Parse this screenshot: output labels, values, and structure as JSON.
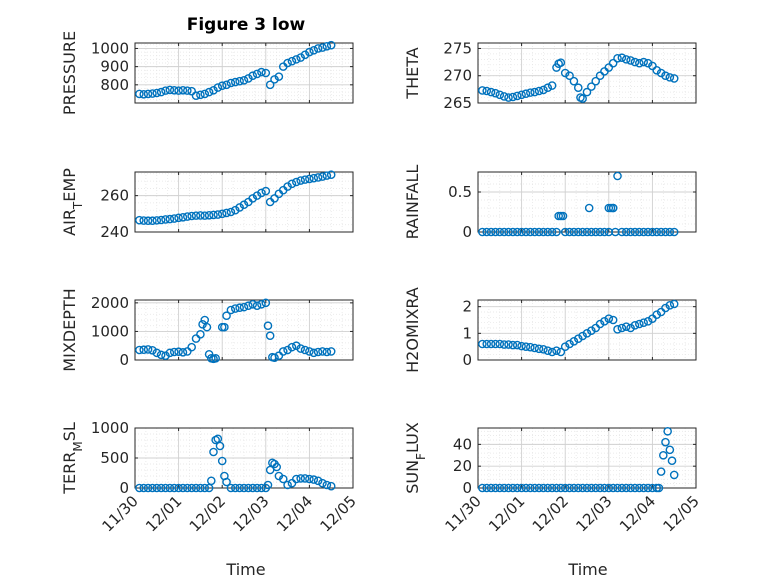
{
  "figure": {
    "title": "Figure 3 low",
    "marker_color": "#0072bd",
    "grid_color": "#d0d0d0",
    "axes_color": "#262626",
    "shared_x_tick_labels": [
      "11/30",
      "12/01",
      "12/02",
      "12/03",
      "12/04",
      "12/05"
    ],
    "shared_xlabel": "Time"
  },
  "chart_data": [
    {
      "type": "scatter",
      "ylabel": "PRESSURE",
      "ylim": [
        700,
        1030
      ],
      "yticks": [
        800,
        900,
        1000
      ],
      "xlim": [
        0,
        5
      ],
      "grid": true,
      "x": [
        0.1,
        0.2,
        0.3,
        0.4,
        0.5,
        0.6,
        0.7,
        0.8,
        0.9,
        1.0,
        1.1,
        1.2,
        1.3,
        1.4,
        1.5,
        1.6,
        1.7,
        1.8,
        1.9,
        2.0,
        2.1,
        2.2,
        2.3,
        2.4,
        2.5,
        2.6,
        2.7,
        2.8,
        2.9,
        3.0,
        3.1,
        3.2,
        3.3,
        3.4,
        3.5,
        3.6,
        3.7,
        3.8,
        3.9,
        4.0,
        4.1,
        4.2,
        4.3,
        4.4,
        4.5
      ],
      "y": [
        750,
        748,
        750,
        752,
        755,
        760,
        768,
        772,
        770,
        768,
        770,
        768,
        765,
        740,
        745,
        750,
        760,
        770,
        785,
        795,
        800,
        810,
        815,
        820,
        825,
        835,
        850,
        860,
        870,
        865,
        800,
        830,
        845,
        900,
        920,
        930,
        940,
        950,
        965,
        980,
        990,
        1000,
        1005,
        1012,
        1018
      ]
    },
    {
      "type": "scatter",
      "ylabel": "THETA",
      "ylim": [
        265,
        276
      ],
      "yticks": [
        265,
        270,
        275
      ],
      "xlim": [
        0,
        5
      ],
      "grid": true,
      "x": [
        0.1,
        0.2,
        0.3,
        0.4,
        0.5,
        0.6,
        0.7,
        0.8,
        0.9,
        1.0,
        1.1,
        1.2,
        1.3,
        1.4,
        1.5,
        1.6,
        1.7,
        1.8,
        1.85,
        1.9,
        2.0,
        2.1,
        2.2,
        2.3,
        2.35,
        2.4,
        2.5,
        2.6,
        2.7,
        2.8,
        2.9,
        3.0,
        3.1,
        3.2,
        3.3,
        3.4,
        3.5,
        3.6,
        3.7,
        3.8,
        3.9,
        4.0,
        4.1,
        4.2,
        4.3,
        4.4,
        4.5
      ],
      "y": [
        267.3,
        267.2,
        267,
        266.8,
        266.5,
        266.2,
        266,
        266.1,
        266.3,
        266.5,
        266.7,
        266.9,
        267,
        267.2,
        267.4,
        267.8,
        268.2,
        271.5,
        272.2,
        272.4,
        270.5,
        270,
        269,
        267.8,
        266,
        265.8,
        267,
        268,
        269,
        270,
        270.8,
        271.5,
        272.3,
        273.2,
        273.3,
        273,
        272.8,
        272.5,
        272.3,
        272.5,
        272.3,
        271.8,
        271,
        270.5,
        270,
        269.7,
        269.5
      ]
    },
    {
      "type": "scatter",
      "ylabel_main": "AIR",
      "ylabel_sub": "T",
      "ylabel_rest": "EMP",
      "ylim": [
        240,
        273
      ],
      "yticks": [
        240,
        260
      ],
      "xlim": [
        0,
        5
      ],
      "grid": true,
      "x": [
        0.1,
        0.2,
        0.3,
        0.4,
        0.5,
        0.6,
        0.7,
        0.8,
        0.9,
        1.0,
        1.1,
        1.2,
        1.3,
        1.4,
        1.5,
        1.6,
        1.7,
        1.8,
        1.9,
        2.0,
        2.1,
        2.2,
        2.3,
        2.4,
        2.5,
        2.6,
        2.7,
        2.8,
        2.9,
        3.0,
        3.1,
        3.2,
        3.3,
        3.4,
        3.5,
        3.6,
        3.7,
        3.8,
        3.9,
        4.0,
        4.1,
        4.2,
        4.3,
        4.4,
        4.5
      ],
      "y": [
        246.5,
        246.3,
        246.2,
        246.2,
        246.4,
        246.6,
        246.9,
        247.1,
        247.4,
        247.8,
        248.1,
        248.5,
        248.8,
        249,
        249.1,
        249,
        249.2,
        249.4,
        249.6,
        250,
        250.5,
        251,
        252,
        253.5,
        255,
        256.5,
        258.5,
        260,
        261.5,
        262.5,
        256.5,
        258.5,
        261,
        263,
        265,
        266.5,
        267.5,
        268.3,
        268.8,
        269.2,
        269.6,
        270,
        270.5,
        271,
        271.5
      ]
    },
    {
      "type": "scatter",
      "ylabel": "RAINFALL",
      "ylim": [
        0,
        0.75
      ],
      "yticks": [
        0,
        0.5
      ],
      "xlim": [
        0,
        5
      ],
      "grid": true,
      "x": [
        0.1,
        0.2,
        0.3,
        0.4,
        0.5,
        0.6,
        0.7,
        0.8,
        0.9,
        1.0,
        1.1,
        1.2,
        1.3,
        1.4,
        1.5,
        1.6,
        1.7,
        1.8,
        1.85,
        1.9,
        1.95,
        2.0,
        2.1,
        2.2,
        2.3,
        2.4,
        2.5,
        2.55,
        2.6,
        2.7,
        2.8,
        2.9,
        3.0,
        3.0,
        3.05,
        3.1,
        3.1,
        3.15,
        3.2,
        3.3,
        3.4,
        3.5,
        3.6,
        3.7,
        3.8,
        3.9,
        4.0,
        4.1,
        4.2,
        4.3,
        4.4,
        4.5
      ],
      "y": [
        0,
        0,
        0,
        0,
        0,
        0,
        0,
        0,
        0,
        0,
        0,
        0,
        0,
        0,
        0,
        0,
        0,
        0,
        0.2,
        0.2,
        0.2,
        0,
        0,
        0,
        0,
        0,
        0,
        0.3,
        0,
        0,
        0,
        0,
        0,
        0.3,
        0.3,
        0.3,
        0.3,
        0,
        0.7,
        0,
        0,
        0,
        0,
        0,
        0,
        0,
        0,
        0,
        0,
        0,
        0,
        0
      ]
    },
    {
      "type": "scatter",
      "ylabel": "MIXDEPTH",
      "ylim": [
        0,
        2100
      ],
      "yticks": [
        0,
        1000,
        2000
      ],
      "xlim": [
        0,
        5
      ],
      "grid": true,
      "x": [
        0.1,
        0.2,
        0.3,
        0.4,
        0.5,
        0.6,
        0.7,
        0.8,
        0.9,
        1.0,
        1.1,
        1.2,
        1.3,
        1.4,
        1.5,
        1.55,
        1.6,
        1.65,
        1.7,
        1.75,
        1.8,
        1.85,
        2.0,
        2.05,
        2.1,
        2.2,
        2.3,
        2.4,
        2.5,
        2.6,
        2.7,
        2.8,
        2.9,
        3.0,
        3.05,
        3.1,
        3.15,
        3.2,
        3.3,
        3.4,
        3.5,
        3.6,
        3.7,
        3.8,
        3.9,
        4.0,
        4.1,
        4.2,
        4.3,
        4.4,
        4.5
      ],
      "y": [
        350,
        360,
        370,
        340,
        250,
        180,
        150,
        250,
        280,
        290,
        270,
        300,
        450,
        750,
        900,
        1250,
        1400,
        1150,
        200,
        60,
        40,
        60,
        1150,
        1150,
        1550,
        1750,
        1800,
        1830,
        1850,
        1900,
        1950,
        1900,
        1950,
        2000,
        1200,
        850,
        100,
        80,
        150,
        300,
        350,
        450,
        500,
        400,
        350,
        300,
        250,
        280,
        300,
        280,
        300
      ]
    },
    {
      "type": "scatter",
      "ylabel": "H2OMIXRA",
      "ylim": [
        0,
        2.25
      ],
      "yticks": [
        0,
        1,
        2
      ],
      "xlim": [
        0,
        5
      ],
      "grid": true,
      "x": [
        0.1,
        0.2,
        0.3,
        0.4,
        0.5,
        0.6,
        0.7,
        0.8,
        0.9,
        1.0,
        1.1,
        1.2,
        1.3,
        1.4,
        1.5,
        1.6,
        1.7,
        1.8,
        1.9,
        2.0,
        2.1,
        2.2,
        2.3,
        2.4,
        2.5,
        2.6,
        2.7,
        2.8,
        2.9,
        3.0,
        3.1,
        3.2,
        3.3,
        3.4,
        3.5,
        3.6,
        3.7,
        3.8,
        3.9,
        4.0,
        4.1,
        4.2,
        4.3,
        4.4,
        4.5
      ],
      "y": [
        0.6,
        0.6,
        0.6,
        0.6,
        0.6,
        0.58,
        0.58,
        0.56,
        0.56,
        0.52,
        0.5,
        0.48,
        0.45,
        0.42,
        0.4,
        0.35,
        0.3,
        0.35,
        0.3,
        0.5,
        0.6,
        0.7,
        0.8,
        0.9,
        1.0,
        1.1,
        1.2,
        1.35,
        1.45,
        1.55,
        1.5,
        1.15,
        1.2,
        1.25,
        1.2,
        1.3,
        1.35,
        1.4,
        1.45,
        1.55,
        1.7,
        1.8,
        1.95,
        2.05,
        2.1
      ]
    },
    {
      "type": "scatter",
      "ylabel_main": "TERR",
      "ylabel_sub": "M",
      "ylabel_rest": "SL",
      "ylim": [
        0,
        1000
      ],
      "yticks": [
        0,
        500,
        1000
      ],
      "xlim": [
        0,
        5
      ],
      "grid": true,
      "x": [
        0.1,
        0.2,
        0.3,
        0.4,
        0.5,
        0.6,
        0.7,
        0.8,
        0.9,
        1.0,
        1.1,
        1.2,
        1.3,
        1.4,
        1.5,
        1.6,
        1.7,
        1.75,
        1.8,
        1.85,
        1.9,
        1.95,
        2.0,
        2.05,
        2.1,
        2.2,
        2.3,
        2.4,
        2.5,
        2.6,
        2.7,
        2.8,
        2.9,
        3.0,
        3.05,
        3.1,
        3.15,
        3.2,
        3.25,
        3.3,
        3.4,
        3.5,
        3.6,
        3.7,
        3.8,
        3.9,
        4.0,
        4.1,
        4.2,
        4.3,
        4.4,
        4.5
      ],
      "y": [
        0,
        0,
        0,
        0,
        0,
        0,
        0,
        0,
        0,
        0,
        0,
        0,
        0,
        0,
        0,
        0,
        0,
        120,
        600,
        800,
        820,
        700,
        450,
        200,
        100,
        0,
        0,
        0,
        0,
        0,
        0,
        0,
        0,
        0,
        50,
        300,
        420,
        400,
        350,
        200,
        150,
        50,
        80,
        150,
        160,
        160,
        150,
        140,
        120,
        80,
        50,
        30
      ]
    },
    {
      "type": "scatter",
      "ylabel_main": "SUN",
      "ylabel_sub": "F",
      "ylabel_rest": "LUX",
      "ylim": [
        0,
        55
      ],
      "yticks": [
        0,
        20,
        40
      ],
      "xlim": [
        0,
        5
      ],
      "grid": true,
      "x": [
        0.1,
        0.2,
        0.3,
        0.4,
        0.5,
        0.6,
        0.7,
        0.8,
        0.9,
        1.0,
        1.1,
        1.2,
        1.3,
        1.4,
        1.5,
        1.6,
        1.7,
        1.8,
        1.9,
        2.0,
        2.1,
        2.2,
        2.3,
        2.4,
        2.5,
        2.6,
        2.7,
        2.8,
        2.9,
        3.0,
        3.1,
        3.2,
        3.3,
        3.4,
        3.5,
        3.6,
        3.7,
        3.8,
        3.9,
        4.0,
        4.1,
        4.15,
        4.2,
        4.25,
        4.3,
        4.35,
        4.4,
        4.45,
        4.5
      ],
      "y": [
        0,
        0,
        0,
        0,
        0,
        0,
        0,
        0,
        0,
        0,
        0,
        0,
        0,
        0,
        0,
        0,
        0,
        0,
        0,
        0,
        0,
        0,
        0,
        0,
        0,
        0,
        0,
        0,
        0,
        0,
        0,
        0,
        0,
        0,
        0,
        0,
        0,
        0,
        0,
        0,
        0,
        0,
        15,
        30,
        42,
        52,
        35,
        25,
        12
      ]
    }
  ]
}
